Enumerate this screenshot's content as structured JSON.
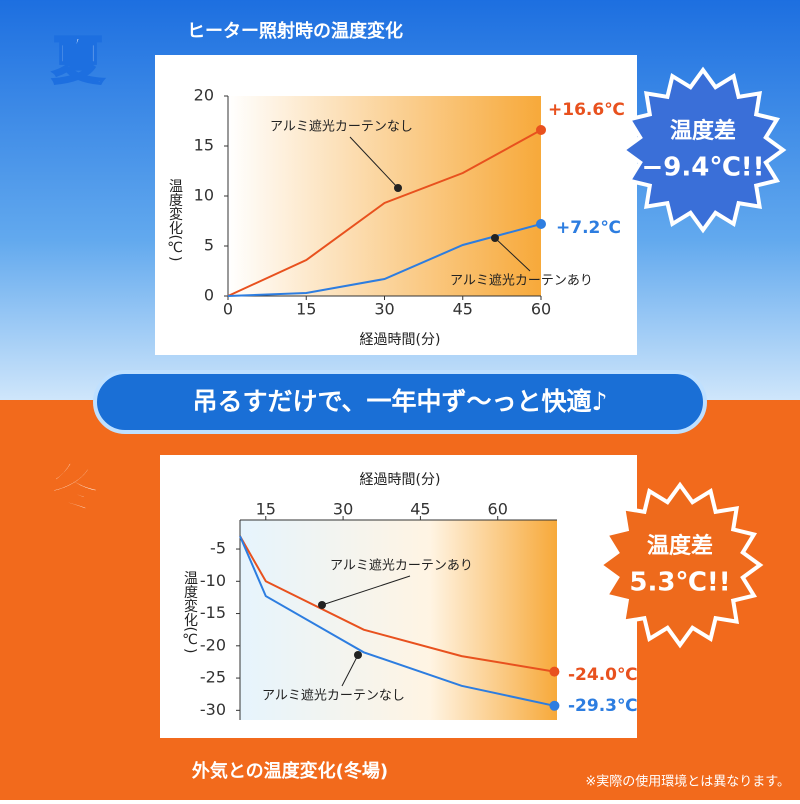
{
  "chart_data": [
    {
      "type": "line",
      "title": "ヒーター照射時の温度変化",
      "badge_label": "夏",
      "x_label": "経過時間(分)",
      "y_label": "温度変化(℃)",
      "x": [
        0,
        15,
        30,
        45,
        60
      ],
      "series": [
        {
          "name": "アルミ遮光カーテンなし",
          "color": "#e8511e",
          "values": [
            0,
            3.6,
            9.3,
            12.3,
            16.6
          ],
          "value_labels": [
            null,
            null,
            null,
            null,
            "+16.6℃"
          ]
        },
        {
          "name": "アルミ遮光カーテンあり",
          "color": "#2d7de0",
          "values": [
            0,
            0.3,
            1.7,
            5.1,
            7.2
          ],
          "value_labels": [
            null,
            null,
            null,
            null,
            "+7.2℃"
          ]
        }
      ],
      "xlim": [
        0,
        60
      ],
      "ylim": [
        0,
        20
      ],
      "xticks": [
        0,
        15,
        30,
        45,
        60
      ],
      "yticks": [
        0,
        5,
        10,
        15,
        20
      ],
      "annotations": [
        "温度差",
        "−9.4℃!!"
      ]
    },
    {
      "type": "line",
      "title": "外気との温度変化(冬場)",
      "badge_label": "冬",
      "x_label": "経過時間(分)",
      "y_label": "温度変化(℃)",
      "x": [
        10,
        15,
        34,
        53,
        71
      ],
      "series": [
        {
          "name": "アルミ遮光カーテンあり",
          "color": "#e8511e",
          "values": [
            -3,
            -10,
            -17.5,
            -21.6,
            -24.0
          ],
          "value_labels": [
            null,
            null,
            null,
            null,
            "-24.0℃"
          ]
        },
        {
          "name": "アルミ遮光カーテンなし",
          "color": "#2d7de0",
          "values": [
            -3,
            -12.3,
            -21,
            -26.2,
            -29.3
          ],
          "value_labels": [
            null,
            null,
            null,
            null,
            "-29.3℃"
          ]
        }
      ],
      "xlim": [
        10,
        71.5
      ],
      "ylim": [
        -31.5,
        -0.5
      ],
      "xticks": [
        15,
        30,
        45,
        60
      ],
      "yticks": [
        -5,
        -10,
        -15,
        -20,
        -25,
        -30
      ],
      "annotations": [
        "温度差",
        "5.3℃!!"
      ]
    }
  ],
  "banner": "吊るすだけで、一年中ず〜っと快適♪",
  "note": "※実際の使用環境とは異なります。"
}
